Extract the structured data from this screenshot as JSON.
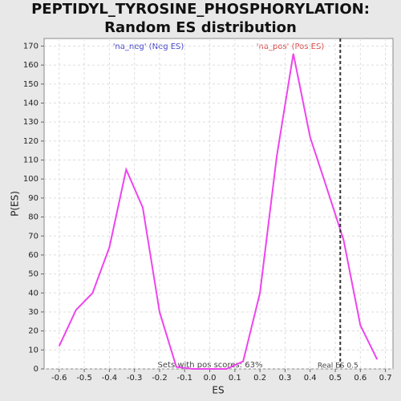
{
  "chart_data": {
    "type": "line",
    "title": "PEPTIDYL_TYROSINE_PHOSPHORYLATION: Random ES distribution",
    "xlabel": "ES",
    "ylabel": "P(ES)",
    "x": [
      -0.6,
      -0.533,
      -0.467,
      -0.4,
      -0.333,
      -0.267,
      -0.2,
      -0.133,
      -0.067,
      0,
      0.067,
      0.133,
      0.2,
      0.267,
      0.333,
      0.4,
      0.467,
      0.533,
      0.6,
      0.667
    ],
    "series": [
      {
        "name": "P(ES)",
        "color": "#ee44ee",
        "values": [
          12,
          31,
          40,
          64,
          105,
          85,
          30,
          1,
          0,
          0,
          0,
          4,
          40,
          112,
          166,
          122,
          95,
          68,
          23,
          5
        ]
      }
    ],
    "xlim": [
      -0.66,
      0.73
    ],
    "ylim": [
      0,
      174
    ],
    "xticks": [
      -0.6,
      -0.5,
      -0.4,
      -0.3,
      -0.2,
      -0.1,
      {
        "value": 0,
        "label": "0.0"
      },
      0.1,
      0.2,
      0.3,
      0.4,
      0.5,
      0.6,
      0.7
    ],
    "yticks": [
      0,
      10,
      20,
      30,
      40,
      50,
      60,
      70,
      80,
      90,
      100,
      110,
      120,
      130,
      140,
      150,
      160,
      170
    ],
    "grid": true,
    "neg_label": "'na_neg' (Neg ES)",
    "pos_label": "'na_pos' (Pos ES)",
    "footnote": "Sets with pos scores: 63%",
    "vline": {
      "x": 0.52,
      "label": "Real ES 0.5"
    }
  }
}
